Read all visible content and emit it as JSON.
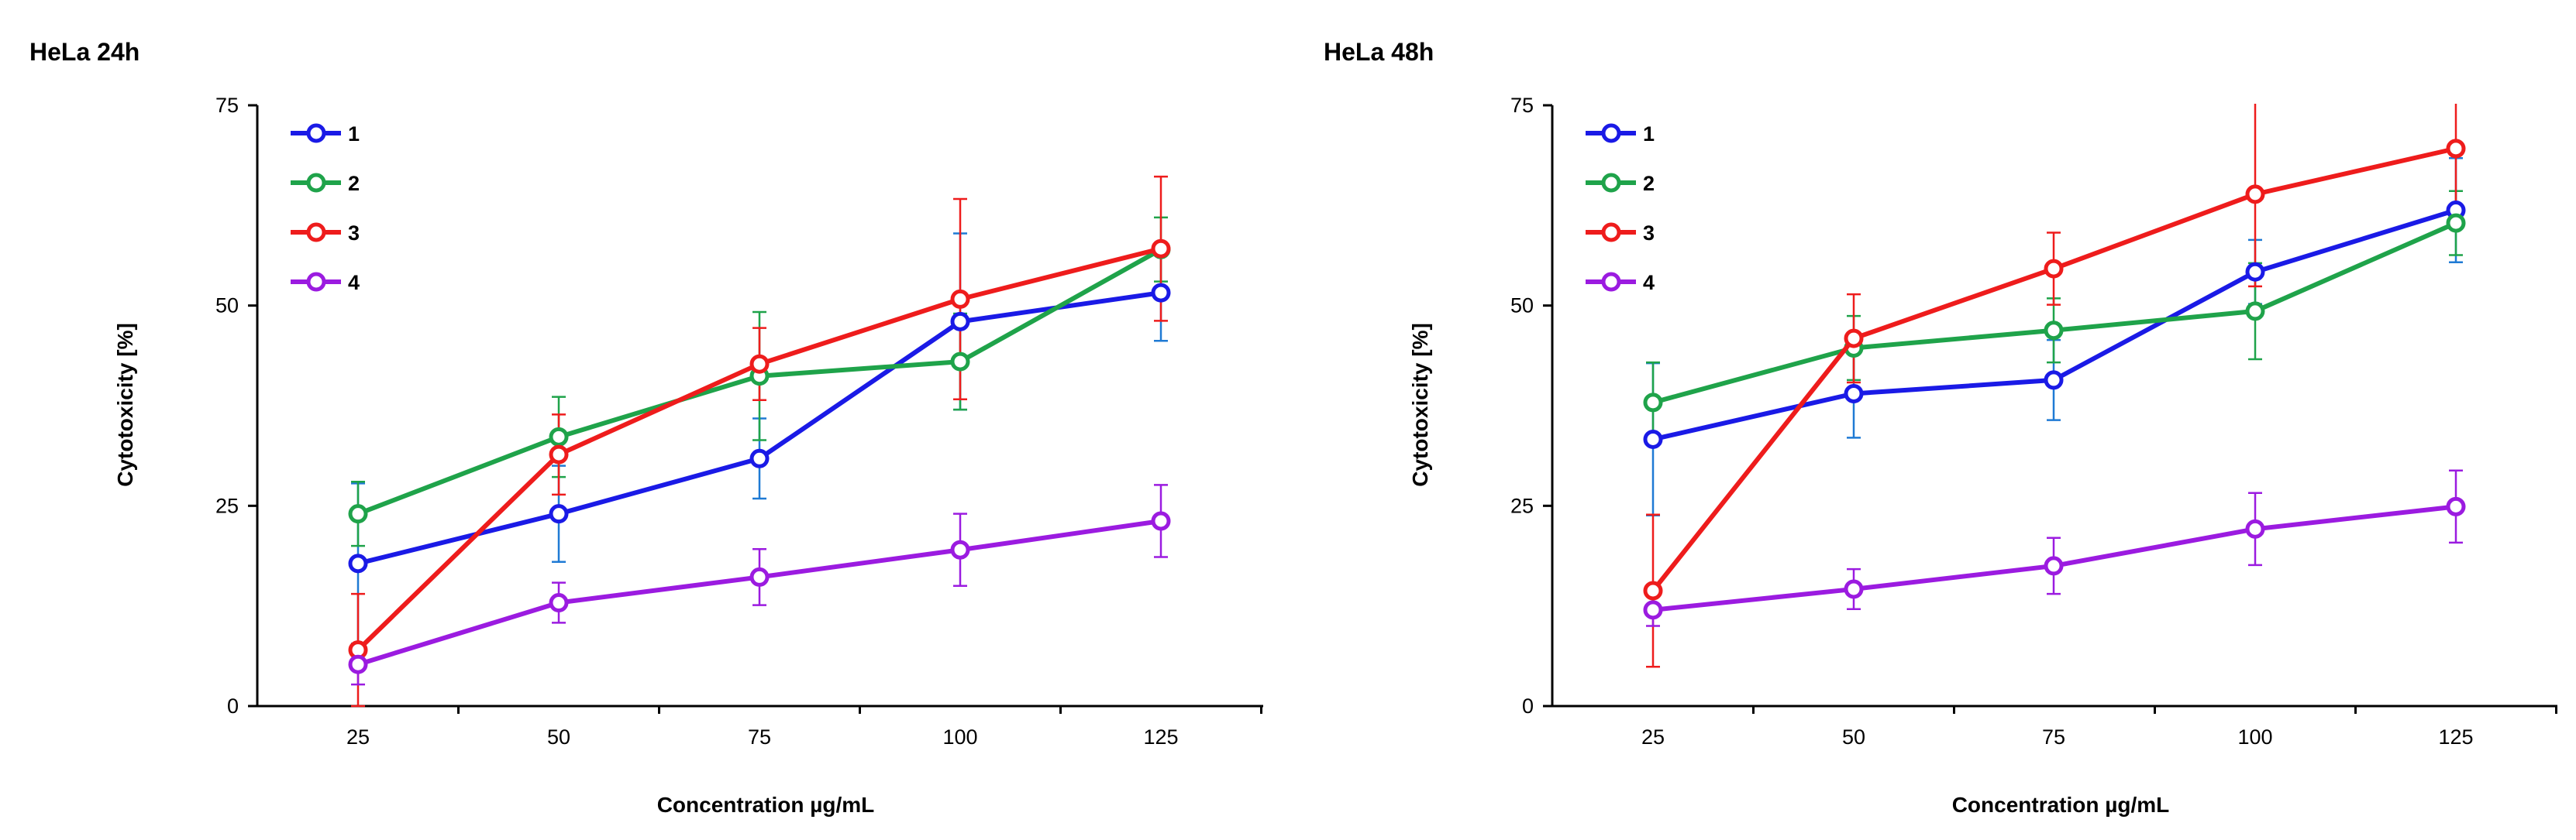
{
  "colors": {
    "1": "#1a1ae6",
    "2": "#1fa34a",
    "3": "#ee1c1c",
    "4": "#9b1be0",
    "err_1": "#1f7ad4",
    "err_2": "#1fa34a",
    "err_3": "#ee1c1c",
    "err_4": "#9b1be0",
    "axis": "#000000"
  },
  "chart_data": [
    {
      "type": "line",
      "title": "HeLa 24h",
      "xlabel": "Concentration µg/mL",
      "ylabel": "Cytotoxicity [%]",
      "categories": [
        "25",
        "50",
        "75",
        "100",
        "125"
      ],
      "y_ticks": [
        "0",
        "25",
        "50",
        "75"
      ],
      "ylim": [
        0,
        75
      ],
      "legend_position": "top-left",
      "series": [
        {
          "name": "1",
          "values": [
            17.8,
            24.0,
            30.9,
            48.0,
            51.6
          ],
          "errors": [
            10.0,
            6.0,
            5.0,
            11.0,
            6.0
          ]
        },
        {
          "name": "2",
          "values": [
            24.0,
            33.6,
            41.2,
            43.0,
            57.0
          ],
          "errors": [
            4.0,
            5.0,
            8.0,
            6.0,
            4.0
          ]
        },
        {
          "name": "3",
          "values": [
            7.0,
            31.4,
            42.7,
            50.8,
            57.1
          ],
          "errors": [
            7.0,
            5.0,
            4.5,
            12.5,
            9.0
          ]
        },
        {
          "name": "4",
          "values": [
            5.2,
            12.9,
            16.1,
            19.5,
            23.1
          ],
          "errors": [
            2.5,
            2.5,
            3.5,
            4.5,
            4.5
          ]
        }
      ]
    },
    {
      "type": "line",
      "title": "HeLa 48h",
      "xlabel": "Concentration µg/mL",
      "ylabel": "Cytotoxicity [%]",
      "categories": [
        "25",
        "50",
        "75",
        "100",
        "125"
      ],
      "y_ticks": [
        "0",
        "25",
        "50",
        "75"
      ],
      "ylim": [
        0,
        75
      ],
      "legend_position": "top-left",
      "series": [
        {
          "name": "1",
          "values": [
            33.3,
            39.0,
            40.7,
            54.2,
            61.9
          ],
          "errors": [
            9.5,
            5.5,
            5.0,
            4.0,
            6.5
          ]
        },
        {
          "name": "2",
          "values": [
            37.9,
            44.7,
            46.9,
            49.3,
            60.3
          ],
          "errors": [
            5.0,
            4.0,
            4.0,
            6.0,
            4.0
          ]
        },
        {
          "name": "3",
          "values": [
            14.4,
            45.9,
            54.6,
            63.9,
            69.6
          ],
          "errors": [
            9.5,
            5.5,
            4.5,
            11.5,
            9.0
          ]
        },
        {
          "name": "4",
          "values": [
            12.0,
            14.6,
            17.5,
            22.1,
            24.9
          ],
          "errors": [
            2.0,
            2.5,
            3.5,
            4.5,
            4.5
          ]
        }
      ]
    }
  ]
}
